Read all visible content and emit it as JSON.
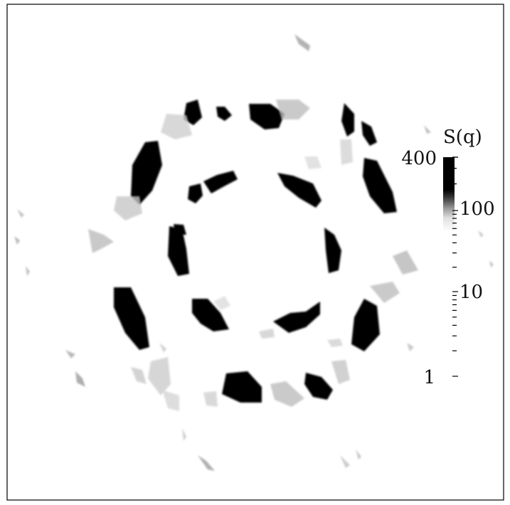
{
  "chart_data": {
    "type": "heatmap",
    "description_kind": "2D structure factor intensity map",
    "colorbar": {
      "title": "S(q)",
      "scale": "log",
      "range": [
        1,
        400
      ],
      "tick_labels": [
        "400",
        "100",
        "10",
        "1"
      ],
      "tick_values": [
        400,
        100,
        10,
        1
      ],
      "colormap": "white-to-black (grayscale)"
    },
    "pattern": {
      "inner_ring": {
        "peak_count": 6,
        "peak_intensity": 400
      },
      "outer_ring": {
        "peak_count": 12,
        "peak_intensity": 400
      },
      "background_intensity": 1
    },
    "grid": false,
    "legend_placement": "right"
  }
}
